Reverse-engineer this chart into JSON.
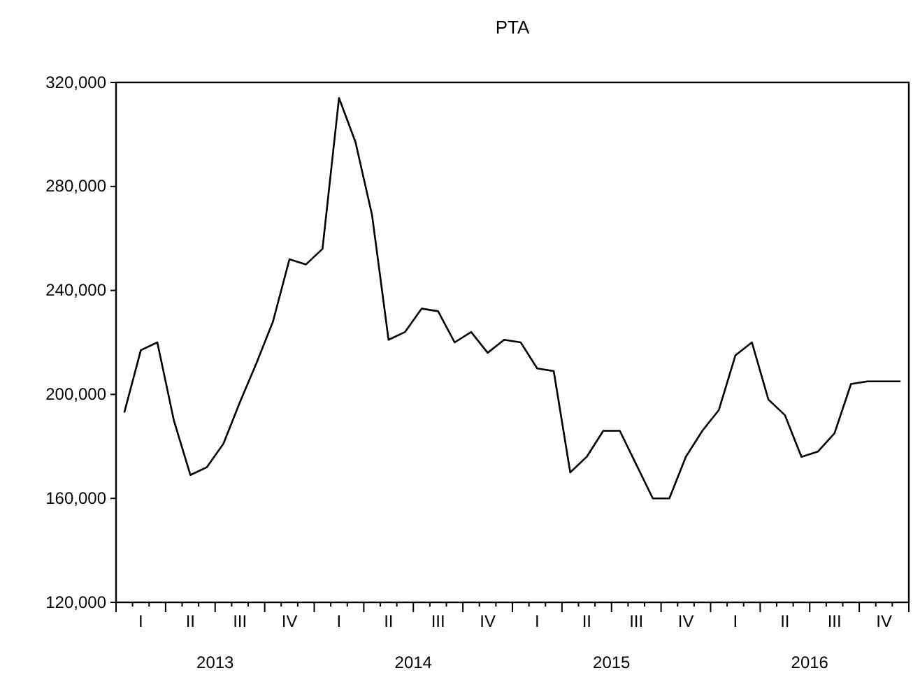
{
  "chart_data": {
    "type": "line",
    "title": "PTA",
    "categories": [
      null,
      "I",
      null,
      null,
      "II",
      null,
      null,
      "III",
      null,
      null,
      "IV",
      null,
      null,
      "I",
      null,
      null,
      "II",
      null,
      null,
      "III",
      null,
      null,
      "IV",
      null,
      null,
      "I",
      null,
      null,
      "II",
      null,
      null,
      "III",
      null,
      null,
      "IV",
      null,
      null,
      "I",
      null,
      null,
      "II",
      null,
      null,
      "III",
      null,
      null,
      "IV",
      null
    ],
    "series": [
      {
        "color": "#000000",
        "values": [
          193000,
          217000,
          220000,
          190000,
          169000,
          172000,
          181000,
          197000,
          212000,
          228000,
          252000,
          250000,
          256000,
          314000,
          297000,
          269000,
          221000,
          224000,
          233000,
          232000,
          220000,
          224000,
          216000,
          221000,
          220000,
          210000,
          209000,
          170000,
          176000,
          186000,
          186000,
          173000,
          160000,
          160000,
          176000,
          186000,
          194000,
          215000,
          220000,
          198000,
          192000,
          176000,
          178000,
          185000,
          204000,
          205000,
          205000,
          205000
        ]
      }
    ],
    "ylim": [
      120000,
      320000
    ],
    "yticks": [
      {
        "value": 120000,
        "label": "120,000"
      },
      {
        "value": 160000,
        "label": "160,000"
      },
      {
        "value": 200000,
        "label": "200,000"
      },
      {
        "value": 240000,
        "label": "240,000"
      },
      {
        "value": 280000,
        "label": "280,000"
      },
      {
        "value": 320000,
        "label": "320,000"
      }
    ],
    "annotations": [
      "2013",
      "2014",
      "2015",
      "2016"
    ],
    "grid": false,
    "marker": "none",
    "line_style": "solid"
  }
}
